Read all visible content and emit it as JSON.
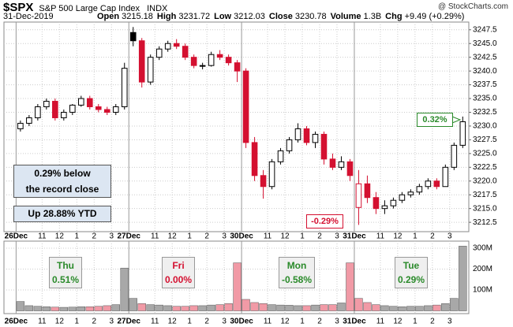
{
  "chart_data": {
    "type": "candlestick",
    "header": {
      "symbol": "$SPX",
      "name": "S&P 500 Large Cap Index",
      "exchange": "INDX",
      "date": "31-Dec-2019",
      "credit": "@ StockCharts.com",
      "fields": [
        {
          "label": "Open",
          "value": "3215.18"
        },
        {
          "label": "High",
          "value": "3231.72"
        },
        {
          "label": "Low",
          "value": "3212.03"
        },
        {
          "label": "Close",
          "value": "3230.78"
        },
        {
          "label": "Volume",
          "value": "1.3B"
        },
        {
          "label": "Chg",
          "value": "+9.49 (+0.29%)"
        }
      ]
    },
    "notes": {
      "record": [
        "0.29% below",
        "the record close"
      ],
      "ytd": "Up 28.88% YTD",
      "last_change": "0.32%",
      "low_change": "-0.29%",
      "days": [
        {
          "day": "Thu",
          "change": "0.51%"
        },
        {
          "day": "Fri",
          "change": "0.00%"
        },
        {
          "day": "Mon",
          "change": "-0.58%"
        },
        {
          "day": "Tue",
          "change": "0.29%"
        }
      ]
    },
    "x": [
      0,
      1,
      2,
      3,
      4,
      5,
      6,
      7,
      8,
      9,
      10,
      11,
      12,
      13,
      14,
      15,
      16,
      17,
      18,
      19,
      20,
      21,
      22,
      23,
      24,
      25,
      26,
      27,
      28,
      29,
      30,
      31,
      32,
      33,
      34,
      35,
      36,
      37,
      38,
      39,
      40,
      41,
      42,
      43,
      44,
      45,
      46,
      47,
      48,
      49,
      50,
      51
    ],
    "open": [
      3229.5,
      3230.5,
      3231.5,
      3233.5,
      3234.5,
      3231.5,
      3232.5,
      3233.8,
      3235,
      3233.5,
      3233,
      3232.5,
      3233.5,
      3247,
      3245.5,
      3238,
      3242.5,
      3244,
      3245,
      3244.5,
      3242.5,
      3241,
      3241,
      3243,
      3242.5,
      3241.5,
      3240,
      3227,
      3221,
      3219,
      3223.5,
      3225.5,
      3227.5,
      3229.5,
      3227,
      3228.5,
      3224,
      3222.5,
      3223.5,
      3215.2,
      3219.5,
      3217,
      3215,
      3215.5,
      3216.5,
      3217.5,
      3218,
      3219,
      3220,
      3219,
      3222.5,
      3226.5
    ],
    "high": [
      3231,
      3232,
      3234,
      3235,
      3235,
      3233,
      3234,
      3235.5,
      3235.5,
      3234,
      3233.5,
      3234,
      3241.5,
      3248,
      3246,
      3243,
      3244.5,
      3245.5,
      3245.8,
      3245,
      3243,
      3241.5,
      3243.5,
      3243.8,
      3243,
      3242,
      3240.5,
      3228,
      3222,
      3224,
      3226,
      3228,
      3230.5,
      3230,
      3229,
      3229,
      3225,
      3224.5,
      3224,
      3222,
      3221,
      3218,
      3216.5,
      3217,
      3218,
      3218.5,
      3219.5,
      3220.5,
      3220.5,
      3223,
      3227,
      3231.72
    ],
    "low": [
      3229,
      3230,
      3231,
      3233,
      3231,
      3231,
      3232,
      3233.5,
      3233,
      3232.5,
      3232,
      3232,
      3233,
      3244.5,
      3237,
      3237.5,
      3242,
      3243.5,
      3244,
      3242,
      3240.5,
      3240.3,
      3240.8,
      3242,
      3241,
      3238,
      3226,
      3220,
      3216.8,
      3218.5,
      3223,
      3225,
      3227,
      3226.5,
      3226,
      3223,
      3222,
      3222,
      3220,
      3212.03,
      3216,
      3214,
      3214,
      3215,
      3216,
      3217,
      3217.5,
      3218.5,
      3218.5,
      3219,
      3222,
      3226
    ],
    "close": [
      3230.5,
      3231.5,
      3233.5,
      3234.5,
      3231.5,
      3232.5,
      3233.8,
      3235,
      3233.5,
      3233,
      3232.5,
      3233.5,
      3240.5,
      3245.5,
      3238,
      3242.5,
      3244,
      3245,
      3244.5,
      3242.5,
      3241,
      3241,
      3243,
      3242.5,
      3241.5,
      3240,
      3227,
      3221,
      3219,
      3223.5,
      3225.5,
      3227.5,
      3229.5,
      3227,
      3228.5,
      3224,
      3222.5,
      3223.5,
      3221,
      3219.5,
      3217,
      3215,
      3215.5,
      3216.5,
      3217.5,
      3218,
      3219,
      3220,
      3219,
      3222.5,
      3226.5,
      3230.78
    ],
    "volume": [
      45,
      25,
      22,
      20,
      18,
      17,
      18,
      20,
      20,
      22,
      25,
      30,
      205,
      60,
      35,
      30,
      28,
      25,
      22,
      22,
      25,
      25,
      28,
      30,
      35,
      230,
      55,
      40,
      35,
      30,
      28,
      27,
      25,
      25,
      28,
      30,
      30,
      38,
      230,
      60,
      40,
      30,
      25,
      22,
      20,
      22,
      22,
      25,
      28,
      35,
      60,
      310
    ],
    "colors": {
      "up": "#000000",
      "down": "#d41030",
      "vol_up": "#a8a8a8",
      "vol_down": "#f19aa6"
    },
    "xlim": [
      -1.4,
      52.2
    ],
    "xticks": [
      {
        "value": 0,
        "label": "26Dec"
      },
      {
        "value": 3,
        "label": "11"
      },
      {
        "value": 5,
        "label": "12"
      },
      {
        "value": 7,
        "label": "1"
      },
      {
        "value": 9,
        "label": "2"
      },
      {
        "value": 11,
        "label": "3"
      },
      {
        "value": 13,
        "label": "27Dec"
      },
      {
        "value": 16,
        "label": "11"
      },
      {
        "value": 18,
        "label": "12"
      },
      {
        "value": 20,
        "label": "1"
      },
      {
        "value": 22,
        "label": "2"
      },
      {
        "value": 24,
        "label": "3"
      },
      {
        "value": 26,
        "label": "30Dec"
      },
      {
        "value": 29,
        "label": "11"
      },
      {
        "value": 31,
        "label": "12"
      },
      {
        "value": 33,
        "label": "1"
      },
      {
        "value": 35,
        "label": "2"
      },
      {
        "value": 37,
        "label": "3"
      },
      {
        "value": 39,
        "label": "31Dec"
      },
      {
        "value": 42,
        "label": "11"
      },
      {
        "value": 44,
        "label": "12"
      },
      {
        "value": 46,
        "label": "1"
      },
      {
        "value": 48,
        "label": "2"
      },
      {
        "value": 50,
        "label": "3"
      }
    ],
    "ylim": [
      3210.8,
      3248.9
    ],
    "yticks": [
      3212.5,
      {
        "value": 3215,
        "label": "3215.0"
      },
      3217.5,
      {
        "value": 3220,
        "label": "3220.0"
      },
      3222.5,
      {
        "value": 3225,
        "label": "3225.0"
      },
      3227.5,
      {
        "value": 3230,
        "label": "3230.0"
      },
      3232.5,
      {
        "value": 3235,
        "label": "3235.0"
      },
      3237.5,
      {
        "value": 3240,
        "label": "3240.0"
      },
      3242.5,
      {
        "value": 3245,
        "label": "3245.0"
      },
      3247.5
    ],
    "vlim": [
      -13,
      334
    ],
    "vticks": [
      {
        "value": 100,
        "label": "100M"
      },
      {
        "value": 200,
        "label": "200M"
      },
      {
        "value": 300,
        "label": "300M"
      }
    ],
    "grid": true
  }
}
